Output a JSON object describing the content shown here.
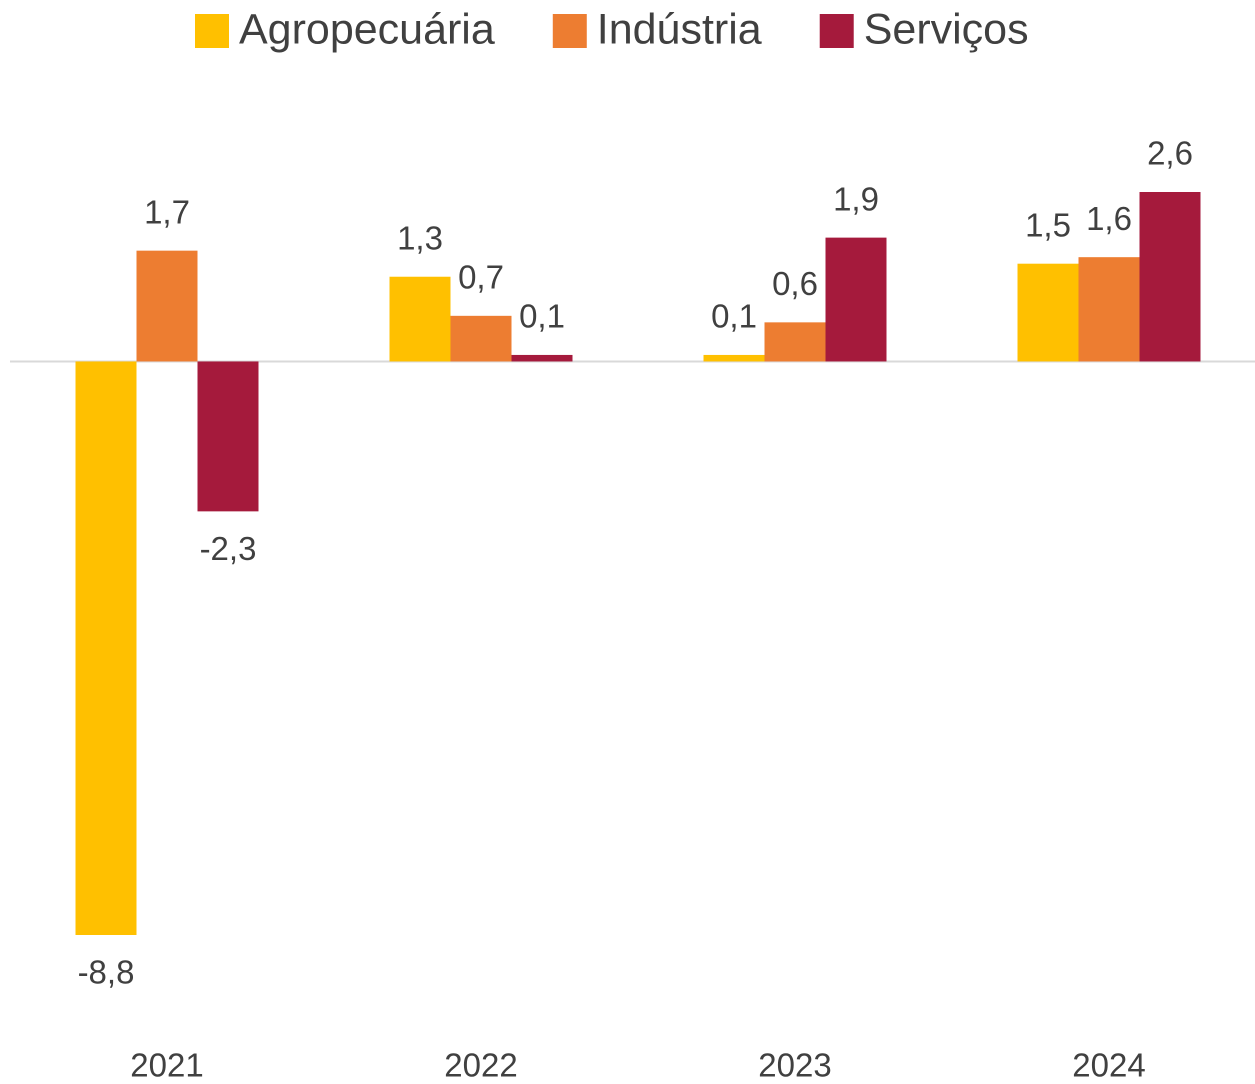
{
  "chart_data": {
    "type": "bar",
    "categories": [
      "2021",
      "2022",
      "2023",
      "2024"
    ],
    "series": [
      {
        "name": "Agropecuária",
        "color": "#ffc000",
        "values": [
          -8.8,
          1.3,
          0.1,
          1.5
        ],
        "value_labels": [
          "-8,8",
          "1,3",
          "0,1",
          "1,5"
        ]
      },
      {
        "name": "Indústria",
        "color": "#ed7d31",
        "values": [
          1.7,
          0.7,
          0.6,
          1.6
        ],
        "value_labels": [
          "1,7",
          "0,7",
          "0,6",
          "1,6"
        ]
      },
      {
        "name": "Serviços",
        "color": "#a51a3c",
        "values": [
          -2.3,
          0.1,
          1.9,
          2.6
        ],
        "value_labels": [
          "-2,3",
          "0,1",
          "1,9",
          "2,6"
        ]
      }
    ],
    "legend": "top"
  }
}
